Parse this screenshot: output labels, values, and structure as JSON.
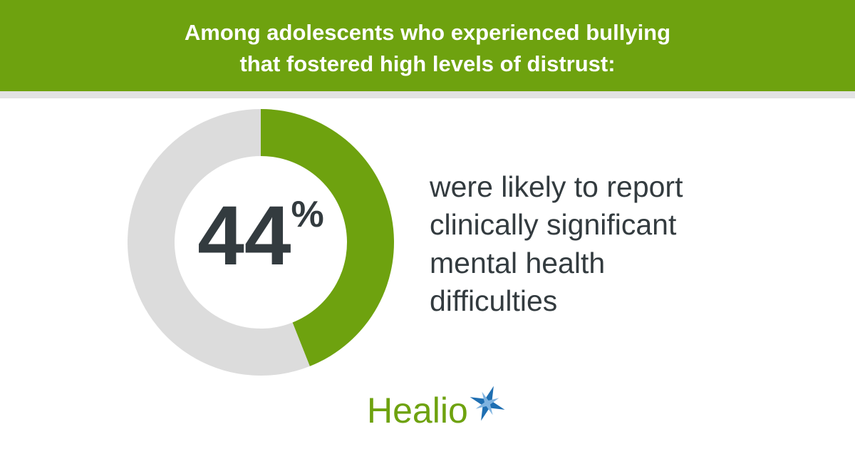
{
  "chart_data": {
    "type": "donut",
    "title": [
      "Among adolescents who experienced bullying",
      "that fostered high levels of distrust:"
    ],
    "values": [
      44,
      56
    ],
    "value_labels": [
      "44%",
      null
    ],
    "colors": [
      "#6ea20f",
      "#dcdcdc"
    ],
    "description": [
      "were likely to report",
      "clinically significant",
      "mental health",
      "difficulties"
    ],
    "logo": "Healio"
  }
}
